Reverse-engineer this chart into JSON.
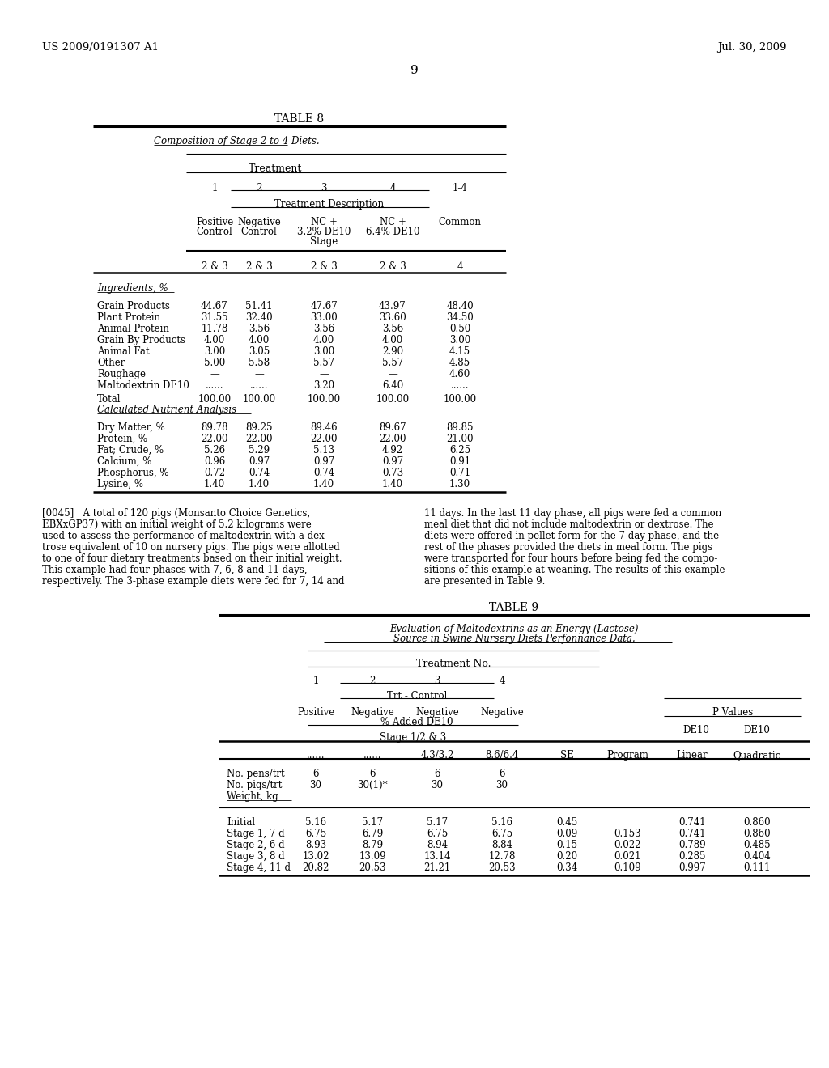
{
  "header_left": "US 2009/0191307 A1",
  "header_right": "Jul. 30, 2009",
  "page_num": "9",
  "table8_title": "TABLE 8",
  "table8_subtitle": "Composition of Stage 2 to 4 Diets.",
  "table8_treatment_label": "Treatment",
  "table8_col_headers_nums": [
    "1",
    "2",
    "3",
    "4",
    "1-4"
  ],
  "table8_treatment_desc": "Treatment Description",
  "table8_col_desc_lines": [
    [
      "Positive",
      "Control"
    ],
    [
      "Negative",
      "Control"
    ],
    [
      "NC +",
      "3.2% DE10",
      "Stage"
    ],
    [
      "NC +",
      "6.4% DE10"
    ],
    [
      "Common"
    ]
  ],
  "table8_stage_row": [
    "2 & 3",
    "2 & 3",
    "2 & 3",
    "2 & 3",
    "4"
  ],
  "table8_ingredients_label": "Ingredients, %",
  "table8_ingredients": [
    [
      "Grain Products",
      "44.67",
      "51.41",
      "47.67",
      "43.97",
      "48.40"
    ],
    [
      "Plant Protein",
      "31.55",
      "32.40",
      "33.00",
      "33.60",
      "34.50"
    ],
    [
      "Animal Protein",
      "11.78",
      "3.56",
      "3.56",
      "3.56",
      "0.50"
    ],
    [
      "Grain By Products",
      "4.00",
      "4.00",
      "4.00",
      "4.00",
      "3.00"
    ],
    [
      "Animal Fat",
      "3.00",
      "3.05",
      "3.00",
      "2.90",
      "4.15"
    ],
    [
      "Other",
      "5.00",
      "5.58",
      "5.57",
      "5.57",
      "4.85"
    ],
    [
      "Roughage",
      "—",
      "—",
      "—",
      "—",
      "4.60"
    ],
    [
      "Maltodextrin DE10",
      "......",
      "......",
      "3.20",
      "6.40",
      "......"
    ]
  ],
  "table8_total_label": "Total",
  "table8_total_vals": [
    "100.00",
    "100.00",
    "100.00",
    "100.00",
    "100.00"
  ],
  "table8_calc_label": "Calculated Nutrient Analysis",
  "table8_nutrients": [
    [
      "Dry Matter, %",
      "89.78",
      "89.25",
      "89.46",
      "89.67",
      "89.85"
    ],
    [
      "Protein, %",
      "22.00",
      "22.00",
      "22.00",
      "22.00",
      "21.00"
    ],
    [
      "Fat; Crude, %",
      "5.26",
      "5.29",
      "5.13",
      "4.92",
      "6.25"
    ],
    [
      "Calcium, %",
      "0.96",
      "0.97",
      "0.97",
      "0.97",
      "0.91"
    ],
    [
      "Phosphorus, %",
      "0.72",
      "0.74",
      "0.74",
      "0.73",
      "0.71"
    ],
    [
      "Lysine, %",
      "1.40",
      "1.40",
      "1.40",
      "1.40",
      "1.30"
    ]
  ],
  "para_left_lines": [
    "[0045]   A total of 120 pigs (Monsanto Choice Genetics,",
    "EBXxGP37) with an initial weight of 5.2 kilograms were",
    "used to assess the performance of maltodextrin with a dex-",
    "trose equivalent of 10 on nursery pigs. The pigs were allotted",
    "to one of four dietary treatments based on their initial weight.",
    "This example had four phases with 7, 6, 8 and 11 days,",
    "respectively. The 3-phase example diets were fed for 7, 14 and"
  ],
  "para_right_lines": [
    "11 days. In the last 11 day phase, all pigs were fed a common",
    "meal diet that did not include maltodextrin or dextrose. The",
    "diets were offered in pellet form for the 7 day phase, and the",
    "rest of the phases provided the diets in meal form. The pigs",
    "were transported for four hours before being fed the compo-",
    "sitions of this example at weaning. The results of this example",
    "are presented in Table 9."
  ],
  "table9_title": "TABLE 9",
  "table9_subtitle1": "Evaluation of Maltodextrins as an Energy (Lactose)",
  "table9_subtitle2": "Source in Swine Nursery Diets Perfonnance Data.",
  "table9_treatment_label": "Treatment No.",
  "table9_col_nums": [
    "1",
    "2",
    "3",
    "4"
  ],
  "table9_trt_control": "Trt - Control",
  "table9_col_desc1": [
    "Positive",
    "Negative",
    "Negative",
    "Negative"
  ],
  "table9_pct_added": "% Added DE10",
  "table9_p_values_label": "P Values",
  "table9_stage_label": "Stage 1/2 & 3",
  "table9_header_row": [
    "......",
    "......",
    "4.3/3.2",
    "8.6/6.4",
    "SE",
    "Program",
    "Linear",
    "Quadratic"
  ],
  "table9_no_pens": [
    "No. pens/trt",
    "6",
    "6",
    "6",
    "6"
  ],
  "table9_no_pigs": [
    "No. pigs/trt",
    "30",
    "30(1)*",
    "30",
    "30"
  ],
  "table9_weight_label": "Weight, kg",
  "table9_data": [
    [
      "Initial",
      "5.16",
      "5.17",
      "5.17",
      "5.16",
      "0.45",
      "",
      "0.741",
      "0.860"
    ],
    [
      "Stage 1, 7 d",
      "6.75",
      "6.79",
      "6.75",
      "6.75",
      "0.09",
      "0.153",
      "0.741",
      "0.860"
    ],
    [
      "Stage 2, 6 d",
      "8.93",
      "8.79",
      "8.94",
      "8.84",
      "0.15",
      "0.022",
      "0.789",
      "0.485"
    ],
    [
      "Stage 3, 8 d",
      "13.02",
      "13.09",
      "13.14",
      "12.78",
      "0.20",
      "0.021",
      "0.285",
      "0.404"
    ],
    [
      "Stage 4, 11 d",
      "20.82",
      "20.53",
      "21.21",
      "20.53",
      "0.34",
      "0.109",
      "0.997",
      "0.111"
    ]
  ]
}
